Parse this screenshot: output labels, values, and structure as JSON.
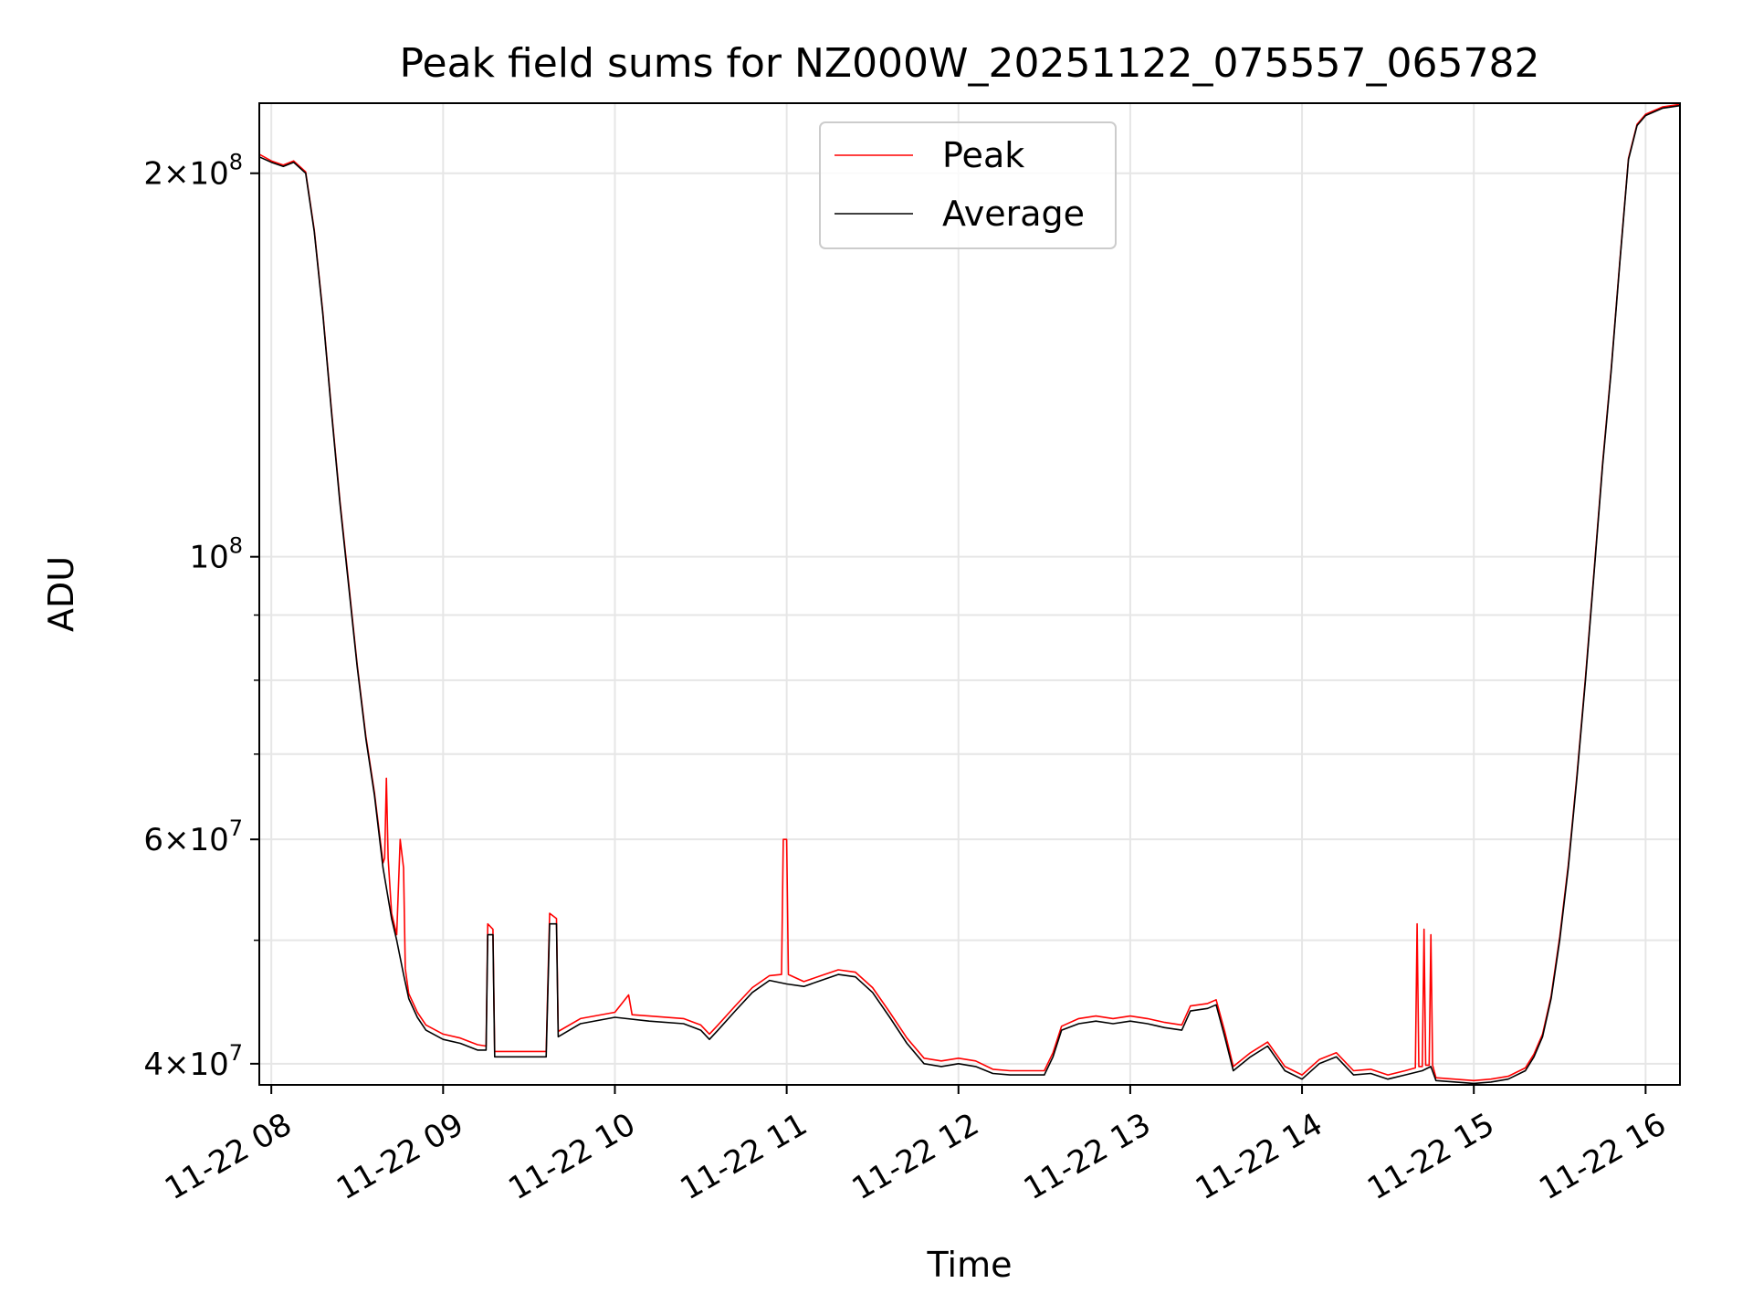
{
  "chart_data": {
    "type": "line",
    "title": "Peak field sums for NZ000W_20251122_075557_065782",
    "xlabel": "Time",
    "ylabel": "ADU",
    "xscale": "time",
    "yscale": "log",
    "xlim": [
      7.93,
      16.2
    ],
    "ylim": [
      38500000,
      227000000
    ],
    "grid": true,
    "legend": {
      "position": "top-center",
      "entries": [
        "Peak",
        "Average"
      ]
    },
    "x_ticks": [
      {
        "value": 8,
        "label": "11-22 08"
      },
      {
        "value": 9,
        "label": "11-22 09"
      },
      {
        "value": 10,
        "label": "11-22 10"
      },
      {
        "value": 11,
        "label": "11-22 11"
      },
      {
        "value": 12,
        "label": "11-22 12"
      },
      {
        "value": 13,
        "label": "11-22 13"
      },
      {
        "value": 14,
        "label": "11-22 14"
      },
      {
        "value": 15,
        "label": "11-22 15"
      },
      {
        "value": 16,
        "label": "11-22 16"
      }
    ],
    "y_ticks": [
      {
        "value": 40000000,
        "mant": "4",
        "exp": "7"
      },
      {
        "value": 60000000,
        "mant": "6",
        "exp": "7"
      },
      {
        "value": 100000000,
        "mant": "",
        "exp": "8"
      },
      {
        "value": 200000000,
        "mant": "2",
        "exp": "8"
      }
    ],
    "y_minor_ticks": [
      50000000,
      70000000,
      80000000,
      90000000
    ],
    "series": [
      {
        "name": "Average",
        "color": "#000000",
        "points": [
          [
            7.93,
            206
          ],
          [
            8.0,
            204
          ],
          [
            8.07,
            202.5
          ],
          [
            8.13,
            204
          ],
          [
            8.2,
            200
          ],
          [
            8.25,
            180
          ],
          [
            8.3,
            155
          ],
          [
            8.35,
            130
          ],
          [
            8.4,
            110
          ],
          [
            8.45,
            95
          ],
          [
            8.5,
            82
          ],
          [
            8.55,
            72
          ],
          [
            8.6,
            65
          ],
          [
            8.65,
            57
          ],
          [
            8.7,
            52
          ],
          [
            8.73,
            50
          ],
          [
            8.77,
            47
          ],
          [
            8.8,
            45
          ],
          [
            8.85,
            43.5
          ],
          [
            8.9,
            42.5
          ],
          [
            9.0,
            41.8
          ],
          [
            9.1,
            41.5
          ],
          [
            9.2,
            41
          ],
          [
            9.25,
            41
          ],
          [
            9.26,
            50.5
          ],
          [
            9.29,
            50.5
          ],
          [
            9.3,
            40.5
          ],
          [
            9.5,
            40.5
          ],
          [
            9.6,
            40.5
          ],
          [
            9.62,
            51.5
          ],
          [
            9.66,
            51.5
          ],
          [
            9.67,
            42
          ],
          [
            9.8,
            43
          ],
          [
            10.0,
            43.5
          ],
          [
            10.2,
            43.2
          ],
          [
            10.4,
            43
          ],
          [
            10.5,
            42.5
          ],
          [
            10.55,
            41.8
          ],
          [
            10.6,
            42.5
          ],
          [
            10.7,
            44
          ],
          [
            10.8,
            45.5
          ],
          [
            10.9,
            46.5
          ],
          [
            11.0,
            46.2
          ],
          [
            11.1,
            46
          ],
          [
            11.2,
            46.5
          ],
          [
            11.3,
            47
          ],
          [
            11.4,
            46.8
          ],
          [
            11.5,
            45.5
          ],
          [
            11.6,
            43.5
          ],
          [
            11.7,
            41.5
          ],
          [
            11.8,
            40
          ],
          [
            11.9,
            39.8
          ],
          [
            12.0,
            40
          ],
          [
            12.1,
            39.8
          ],
          [
            12.2,
            39.3
          ],
          [
            12.3,
            39.2
          ],
          [
            12.5,
            39.2
          ],
          [
            12.55,
            40.5
          ],
          [
            12.6,
            42.5
          ],
          [
            12.7,
            43
          ],
          [
            12.8,
            43.2
          ],
          [
            12.9,
            43
          ],
          [
            13.0,
            43.2
          ],
          [
            13.1,
            43
          ],
          [
            13.2,
            42.7
          ],
          [
            13.3,
            42.5
          ],
          [
            13.35,
            44
          ],
          [
            13.45,
            44.2
          ],
          [
            13.5,
            44.5
          ],
          [
            13.55,
            42
          ],
          [
            13.6,
            39.5
          ],
          [
            13.7,
            40.5
          ],
          [
            13.8,
            41.3
          ],
          [
            13.9,
            39.5
          ],
          [
            14.0,
            38.9
          ],
          [
            14.1,
            40
          ],
          [
            14.2,
            40.5
          ],
          [
            14.3,
            39.2
          ],
          [
            14.4,
            39.3
          ],
          [
            14.5,
            38.9
          ],
          [
            14.6,
            39.2
          ],
          [
            14.7,
            39.5
          ],
          [
            14.75,
            39.8
          ],
          [
            14.78,
            38.8
          ],
          [
            15.0,
            38.6
          ],
          [
            15.1,
            38.7
          ],
          [
            15.2,
            38.9
          ],
          [
            15.3,
            39.5
          ],
          [
            15.35,
            40.5
          ],
          [
            15.4,
            42
          ],
          [
            15.45,
            45
          ],
          [
            15.5,
            50
          ],
          [
            15.55,
            57
          ],
          [
            15.6,
            67
          ],
          [
            15.65,
            80
          ],
          [
            15.7,
            97
          ],
          [
            15.75,
            118
          ],
          [
            15.8,
            140
          ],
          [
            15.85,
            170
          ],
          [
            15.9,
            205
          ],
          [
            15.95,
            218
          ],
          [
            16.0,
            222
          ],
          [
            16.1,
            225
          ],
          [
            16.2,
            226
          ]
        ]
      },
      {
        "name": "Peak",
        "color": "#ff0000",
        "points": [
          [
            7.93,
            207
          ],
          [
            8.0,
            204.5
          ],
          [
            8.07,
            203
          ],
          [
            8.13,
            204.5
          ],
          [
            8.2,
            200.5
          ],
          [
            8.25,
            180.5
          ],
          [
            8.3,
            155.5
          ],
          [
            8.35,
            130.5
          ],
          [
            8.4,
            110.5
          ],
          [
            8.45,
            95.5
          ],
          [
            8.5,
            82.3
          ],
          [
            8.55,
            72.3
          ],
          [
            8.6,
            65.3
          ],
          [
            8.65,
            57.5
          ],
          [
            8.66,
            58
          ],
          [
            8.67,
            67
          ],
          [
            8.68,
            58
          ],
          [
            8.7,
            52.5
          ],
          [
            8.73,
            50.5
          ],
          [
            8.75,
            60
          ],
          [
            8.77,
            57
          ],
          [
            8.78,
            47.5
          ],
          [
            8.8,
            45.4
          ],
          [
            8.85,
            43.9
          ],
          [
            8.9,
            42.9
          ],
          [
            9.0,
            42.2
          ],
          [
            9.1,
            41.9
          ],
          [
            9.2,
            41.4
          ],
          [
            9.25,
            41.3
          ],
          [
            9.26,
            51.5
          ],
          [
            9.29,
            51
          ],
          [
            9.3,
            40.9
          ],
          [
            9.5,
            40.9
          ],
          [
            9.6,
            40.9
          ],
          [
            9.62,
            52.5
          ],
          [
            9.66,
            52
          ],
          [
            9.67,
            42.4
          ],
          [
            9.8,
            43.4
          ],
          [
            10.0,
            43.9
          ],
          [
            10.08,
            45.3
          ],
          [
            10.1,
            43.7
          ],
          [
            10.2,
            43.6
          ],
          [
            10.4,
            43.4
          ],
          [
            10.5,
            42.9
          ],
          [
            10.55,
            42.2
          ],
          [
            10.6,
            42.9
          ],
          [
            10.7,
            44.4
          ],
          [
            10.8,
            45.9
          ],
          [
            10.9,
            46.9
          ],
          [
            10.97,
            47
          ],
          [
            10.98,
            60
          ],
          [
            11.0,
            60
          ],
          [
            11.01,
            47
          ],
          [
            11.1,
            46.4
          ],
          [
            11.2,
            46.9
          ],
          [
            11.3,
            47.4
          ],
          [
            11.4,
            47.2
          ],
          [
            11.5,
            45.9
          ],
          [
            11.6,
            43.9
          ],
          [
            11.7,
            41.9
          ],
          [
            11.8,
            40.4
          ],
          [
            11.9,
            40.2
          ],
          [
            12.0,
            40.4
          ],
          [
            12.1,
            40.2
          ],
          [
            12.2,
            39.6
          ],
          [
            12.3,
            39.5
          ],
          [
            12.5,
            39.5
          ],
          [
            12.55,
            40.8
          ],
          [
            12.6,
            42.8
          ],
          [
            12.7,
            43.4
          ],
          [
            12.8,
            43.6
          ],
          [
            12.9,
            43.4
          ],
          [
            13.0,
            43.6
          ],
          [
            13.1,
            43.4
          ],
          [
            13.2,
            43.1
          ],
          [
            13.3,
            42.9
          ],
          [
            13.35,
            44.4
          ],
          [
            13.45,
            44.6
          ],
          [
            13.5,
            44.9
          ],
          [
            13.55,
            42.4
          ],
          [
            13.6,
            39.8
          ],
          [
            13.7,
            40.8
          ],
          [
            13.8,
            41.6
          ],
          [
            13.9,
            39.8
          ],
          [
            14.0,
            39.2
          ],
          [
            14.1,
            40.3
          ],
          [
            14.2,
            40.8
          ],
          [
            14.3,
            39.5
          ],
          [
            14.4,
            39.6
          ],
          [
            14.5,
            39.2
          ],
          [
            14.6,
            39.5
          ],
          [
            14.66,
            39.7
          ],
          [
            14.67,
            51.5
          ],
          [
            14.68,
            39.8
          ],
          [
            14.7,
            39.8
          ],
          [
            14.71,
            51
          ],
          [
            14.72,
            39.9
          ],
          [
            14.74,
            39.9
          ],
          [
            14.75,
            50.5
          ],
          [
            14.76,
            39.9
          ],
          [
            14.78,
            39
          ],
          [
            15.0,
            38.8
          ],
          [
            15.1,
            38.9
          ],
          [
            15.2,
            39.1
          ],
          [
            15.3,
            39.7
          ],
          [
            15.35,
            40.7
          ],
          [
            15.4,
            42.2
          ],
          [
            15.45,
            45.2
          ],
          [
            15.5,
            50.3
          ],
          [
            15.55,
            57.3
          ],
          [
            15.6,
            67.3
          ],
          [
            15.65,
            80.4
          ],
          [
            15.7,
            97.4
          ],
          [
            15.75,
            118.5
          ],
          [
            15.8,
            140.5
          ],
          [
            15.85,
            170.5
          ],
          [
            15.9,
            205.5
          ],
          [
            15.95,
            218.5
          ],
          [
            16.0,
            222.5
          ],
          [
            16.1,
            225.5
          ],
          [
            16.2,
            226.5
          ]
        ]
      }
    ]
  }
}
